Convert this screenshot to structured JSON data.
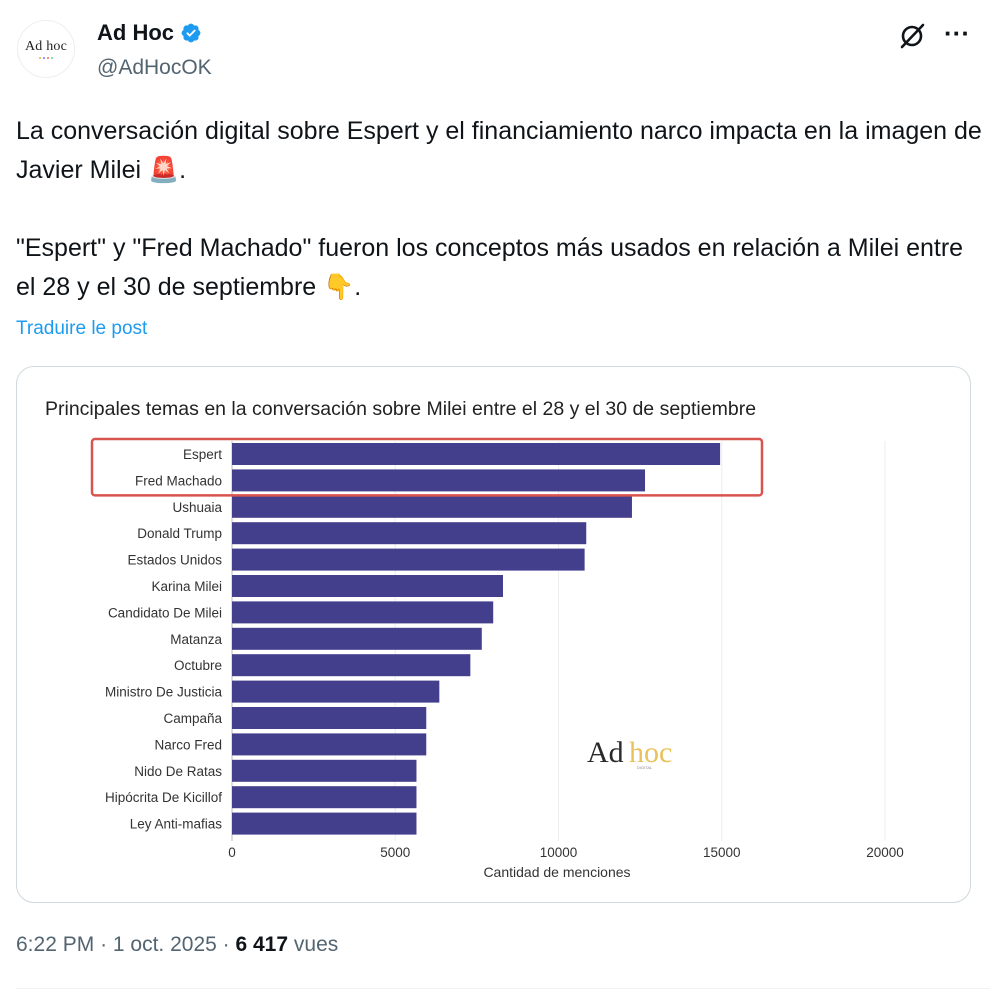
{
  "author": {
    "display_name": "Ad Hoc",
    "handle": "@AdHocOK",
    "avatar_text": "Ad hoc",
    "verified_icon": "verified-badge-icon",
    "verified_color": "#1d9bf0"
  },
  "actions": {
    "grok_icon": "grok-icon",
    "more_label": "···"
  },
  "tweet": {
    "paragraph_1": "La conversación digital sobre Espert y el financiamiento narco impacta en la imagen de Javier Milei 🚨.",
    "paragraph_2": "\"Espert\" y \"Fred Machado\" fueron los conceptos más usados en relación a Milei entre el 28 y el 30 de septiembre 👇."
  },
  "translate_label": "Traduire le post",
  "meta": {
    "time": "6:22 PM",
    "date": "1 oct. 2025",
    "views_count": "6 417",
    "views_label": "vues"
  },
  "chart_data": {
    "type": "bar",
    "orientation": "horizontal",
    "title": "Principales temas en la conversación sobre Milei entre el 28 y el 30 de septiembre",
    "xlabel": "Cantidad de menciones",
    "ylabel": "",
    "xlim": [
      0,
      20000
    ],
    "xticks": [
      0,
      5000,
      10000,
      15000,
      20000
    ],
    "grid": "vertical",
    "bar_color": "#443f8c",
    "highlight_color": "#d9534f",
    "highlighted_categories": [
      "Espert",
      "Fred Machado"
    ],
    "watermark": "Ad hoc",
    "categories": [
      "Espert",
      "Fred Machado",
      "Ushuaia",
      "Donald Trump",
      "Estados Unidos",
      "Karina Milei",
      "Candidato De Milei",
      "Matanza",
      "Octubre",
      "Ministro De Justicia",
      "Campaña",
      "Narco Fred",
      "Nido De Ratas",
      "Hipócrita De Kicillof",
      "Ley Anti-mafias"
    ],
    "values": [
      14950,
      12650,
      12250,
      10850,
      10800,
      8300,
      8000,
      7650,
      7300,
      6350,
      5950,
      5950,
      5650,
      5650,
      5650
    ]
  }
}
